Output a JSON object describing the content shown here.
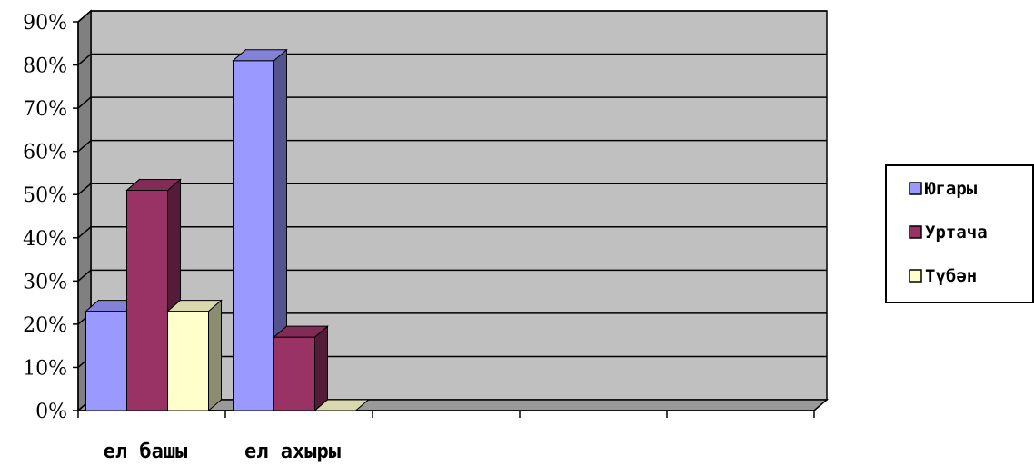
{
  "chart_data": {
    "type": "bar",
    "categories": [
      "ел башы",
      "ел ахыры",
      "",
      "",
      ""
    ],
    "series": [
      {
        "name": "Югары",
        "values": [
          23,
          81,
          null,
          null,
          null
        ],
        "color": "#9999ff"
      },
      {
        "name": "Уртача",
        "values": [
          51,
          17,
          null,
          null,
          null
        ],
        "color": "#993366"
      },
      {
        "name": "Түбән",
        "values": [
          23,
          0,
          null,
          null,
          null
        ],
        "color": "#ffffcc"
      }
    ],
    "y_ticks": [
      "0%",
      "10%",
      "20%",
      "30%",
      "40%",
      "50%",
      "60%",
      "70%",
      "80%",
      "90%"
    ],
    "ylim": [
      0,
      90
    ],
    "grid": true,
    "legend": "right",
    "plot_background": "#c0c0c0"
  }
}
